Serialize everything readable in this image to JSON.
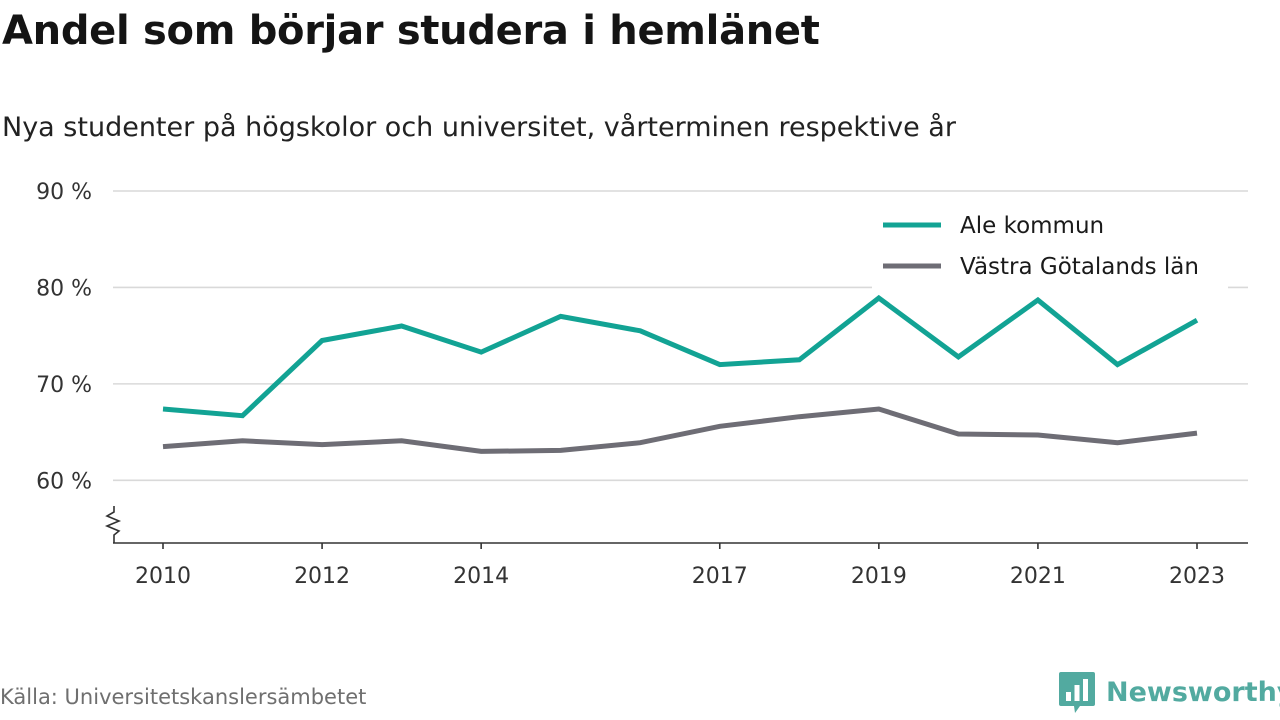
{
  "title": "Andel som börjar studera i hemlänet",
  "subtitle": "Nya studenter på högskolor och universitet, vårterminen respektive år",
  "source": "Källa: Universitetskanslersämbetet",
  "brand": {
    "name": "Newsworthy",
    "icon": "newsworthy-logo-icon",
    "color": "#52aaa0"
  },
  "chart_data": {
    "type": "line",
    "title": "Andel som börjar studera i hemlänet",
    "subtitle": "Nya studenter på högskolor och universitet, vårterminen respektive år",
    "x": [
      2010,
      2011,
      2012,
      2013,
      2014,
      2015,
      2016,
      2017,
      2018,
      2019,
      2020,
      2021,
      2022,
      2023
    ],
    "x_ticks": [
      2010,
      2012,
      2014,
      2017,
      2019,
      2021,
      2023
    ],
    "x_tick_labels": [
      "2010",
      "2012",
      "2014",
      "2017",
      "2019",
      "2021",
      "2023"
    ],
    "y_ticks": [
      60,
      70,
      80,
      90
    ],
    "y_tick_labels": [
      "60 %",
      "70 %",
      "80 %",
      "90 %"
    ],
    "ylim": [
      53.5,
      90
    ],
    "y_axis_break": true,
    "grid": true,
    "legend_position": "top-right",
    "series": [
      {
        "name": "Ale kommun",
        "color": "#12a394",
        "values": [
          67.4,
          66.7,
          74.5,
          76.0,
          73.3,
          77.0,
          75.5,
          72.0,
          72.5,
          78.9,
          72.8,
          78.7,
          72.0,
          76.6
        ]
      },
      {
        "name": "Västra Götalands län",
        "color": "#6e6d75",
        "values": [
          63.5,
          64.1,
          63.7,
          64.1,
          63.0,
          63.1,
          63.9,
          65.6,
          66.6,
          67.4,
          64.8,
          64.7,
          63.9,
          64.9
        ]
      }
    ]
  }
}
